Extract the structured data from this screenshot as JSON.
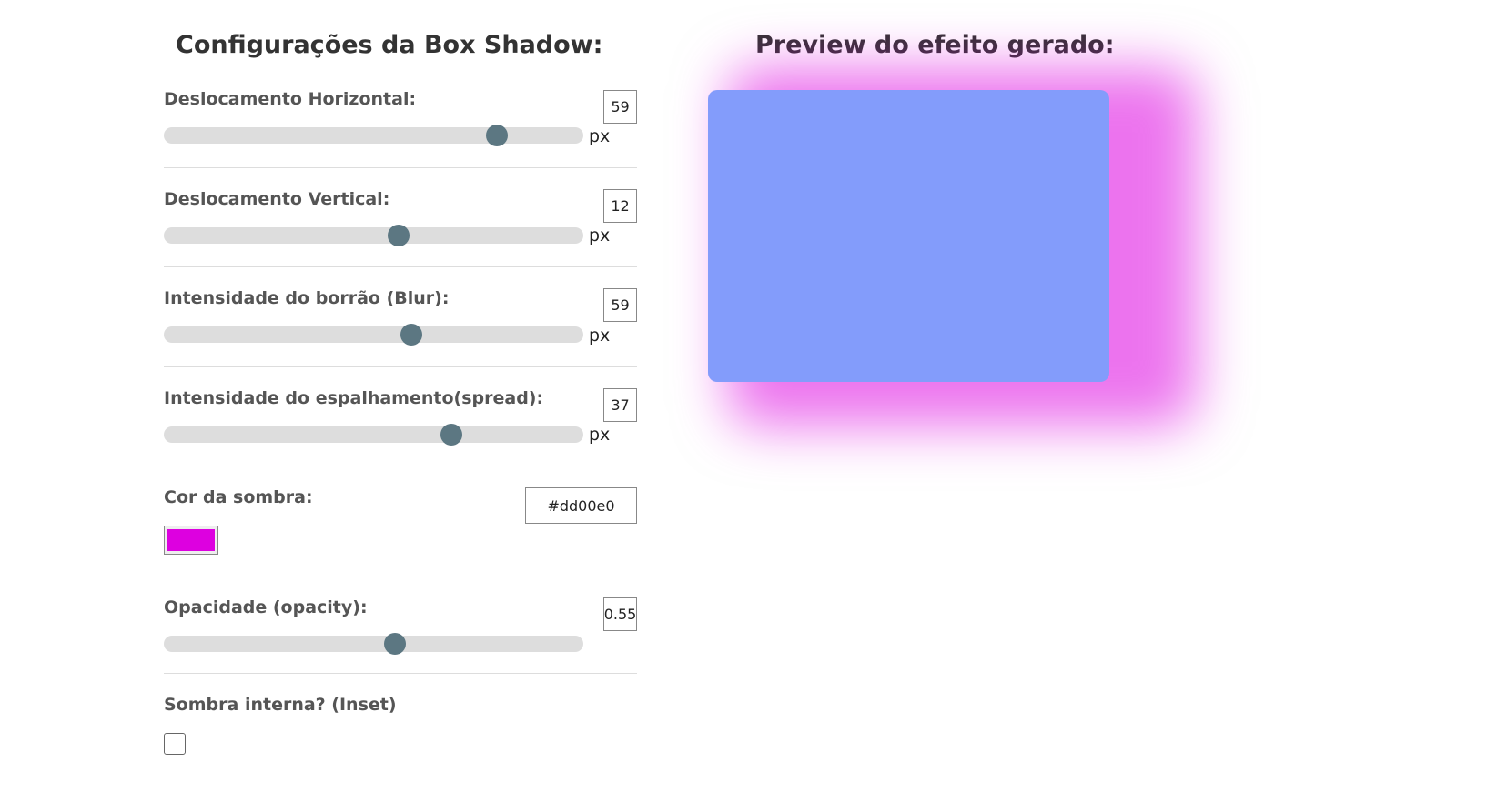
{
  "config_title": "Configurações da Box Shadow:",
  "preview_title": "Preview do efeito gerado:",
  "unit": "px",
  "controls": {
    "horizontal": {
      "label": "Deslocamento Horizontal:",
      "value": "59",
      "min": -100,
      "max": 100
    },
    "vertical": {
      "label": "Deslocamento Vertical:",
      "value": "12",
      "min": -100,
      "max": 100
    },
    "blur": {
      "label": "Intensidade do borrão (Blur):",
      "value": "59",
      "min": 0,
      "max": 100
    },
    "spread": {
      "label": "Intensidade do espalhamento(spread):",
      "value": "37",
      "min": -100,
      "max": 100
    },
    "color": {
      "label": "Cor da sombra:",
      "value": "#dd00e0"
    },
    "opacity": {
      "label": "Opacidade (opacity):",
      "value": "0.55",
      "min": 0,
      "max": 1
    },
    "inset": {
      "label": "Sombra interna? (Inset)",
      "checked": false
    }
  },
  "colors": {
    "preview_box": "#839cfb",
    "thumb": "#5c7782",
    "track": "#dddddd"
  }
}
